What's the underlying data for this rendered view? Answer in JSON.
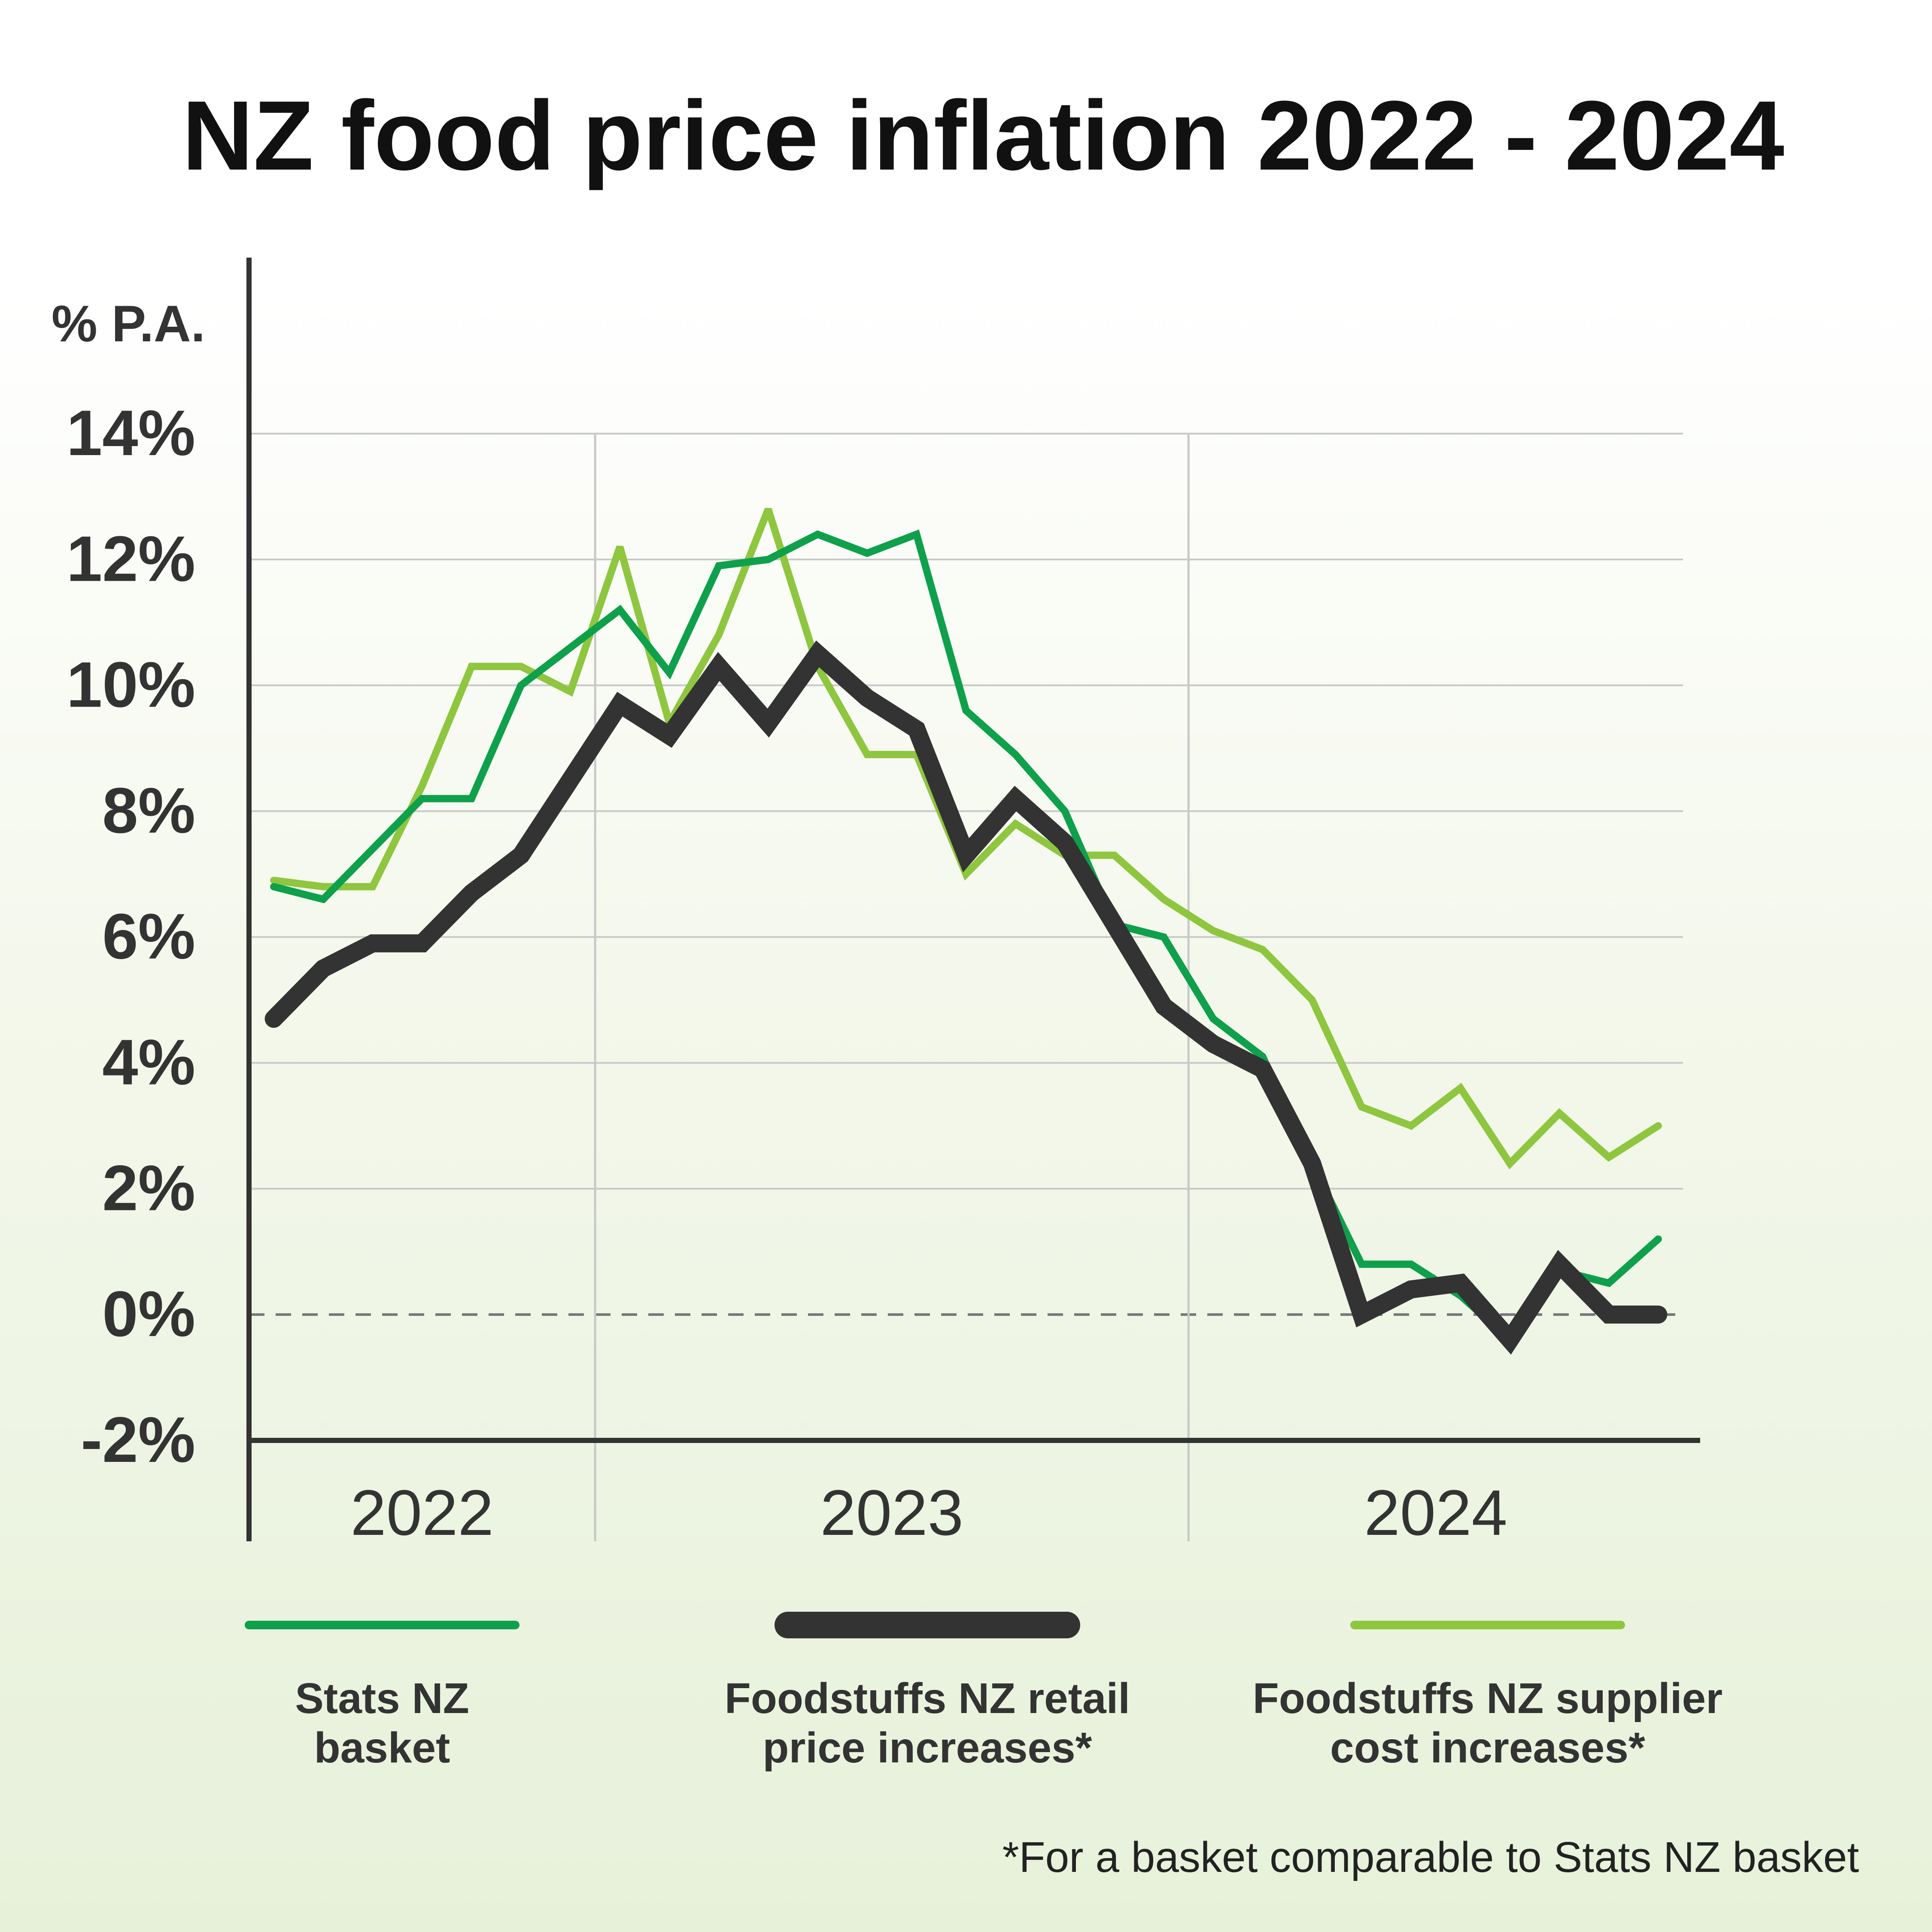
{
  "colors": {
    "stats_nz": "#0ea04b",
    "foodstuffs_retail": "#333333",
    "foodstuffs_supplier": "#8ec63f",
    "grid": "#c8c8c8",
    "axis": "#333333"
  },
  "chart_data": {
    "type": "line",
    "title": "NZ food price inflation 2022 - 2024",
    "ylabel": "% P.A.",
    "ylim": [
      -2,
      14
    ],
    "yticks": [
      14,
      12,
      10,
      8,
      6,
      4,
      2,
      0,
      -2
    ],
    "ytick_labels": [
      "14%",
      "12%",
      "10%",
      "8%",
      "6%",
      "4%",
      "2%",
      "0%",
      "-2%"
    ],
    "x_periods": [
      "2022",
      "2023",
      "2024"
    ],
    "x_range": [
      0.5,
      29.5
    ],
    "period_boundaries": [
      7.5,
      19.5
    ],
    "zero_line": "dashed",
    "grid": true,
    "legend_position": "bottom",
    "footnote": "*For a basket comparable to Stats NZ basket",
    "series": [
      {
        "name": "Stats NZ basket",
        "legend_lines": [
          "Stats NZ",
          "basket"
        ],
        "color_key": "stats_nz",
        "style": "thin",
        "x": [
          1,
          2,
          3,
          4,
          5,
          6,
          7,
          8,
          9,
          10,
          11,
          12,
          13,
          14,
          15,
          16,
          17,
          18,
          19,
          20,
          21,
          22,
          23,
          24,
          25,
          26,
          27,
          28,
          29
        ],
        "values": [
          6.8,
          6.6,
          7.4,
          8.2,
          8.2,
          10.0,
          10.6,
          11.2,
          10.2,
          11.9,
          12.0,
          12.4,
          12.1,
          12.4,
          9.6,
          8.9,
          8.0,
          6.2,
          6.0,
          4.7,
          4.1,
          2.4,
          0.8,
          0.8,
          0.3,
          -0.4,
          0.7,
          0.5,
          1.2
        ]
      },
      {
        "name": "Foodstuffs NZ retail price increases*",
        "legend_lines": [
          "Foodstuffs NZ retail",
          "price increases*"
        ],
        "color_key": "foodstuffs_retail",
        "style": "thick",
        "x": [
          1,
          2,
          3,
          4,
          5,
          6,
          7,
          8,
          9,
          10,
          11,
          12,
          13,
          14,
          15,
          16,
          17,
          18,
          19,
          20,
          21,
          22,
          23,
          24,
          25,
          26,
          27,
          28,
          29
        ],
        "values": [
          4.7,
          5.5,
          5.9,
          5.9,
          6.7,
          7.3,
          8.5,
          9.7,
          9.2,
          10.3,
          9.4,
          10.5,
          9.8,
          9.3,
          7.3,
          8.2,
          7.5,
          6.2,
          4.9,
          4.3,
          3.9,
          2.4,
          0.0,
          0.4,
          0.5,
          -0.4,
          0.8,
          0.0,
          0.0
        ]
      },
      {
        "name": "Foodstuffs NZ supplier cost increases*",
        "legend_lines": [
          "Foodstuffs NZ supplier",
          "cost increases*"
        ],
        "color_key": "foodstuffs_supplier",
        "style": "thin",
        "x": [
          1,
          2,
          3,
          4,
          5,
          6,
          7,
          8,
          9,
          10,
          11,
          12,
          13,
          14,
          15,
          16,
          17,
          18,
          19,
          20,
          21,
          22,
          23,
          24,
          25,
          26,
          27,
          28,
          29
        ],
        "values": [
          6.9,
          6.8,
          6.8,
          8.4,
          10.3,
          10.3,
          9.9,
          12.2,
          9.4,
          10.8,
          12.8,
          10.3,
          8.9,
          8.9,
          7.0,
          7.8,
          7.3,
          7.3,
          6.6,
          6.1,
          5.8,
          5.0,
          3.3,
          3.0,
          3.6,
          2.4,
          3.2,
          2.5,
          3.0
        ]
      }
    ]
  }
}
